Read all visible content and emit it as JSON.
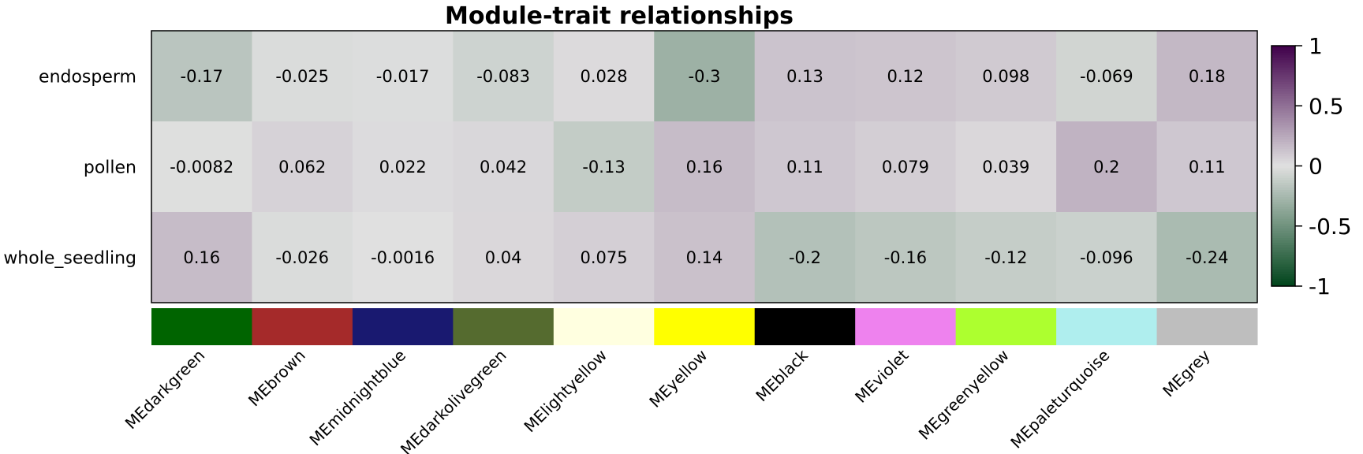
{
  "chart_data": {
    "type": "heatmap",
    "title": "Module-trait relationships",
    "rows": [
      "endosperm",
      "pollen",
      "whole_seedling"
    ],
    "columns": [
      "MEdarkgreen",
      "MEbrown",
      "MEmidnightblue",
      "MEdarkolivegreen",
      "MElightyellow",
      "MEyellow",
      "MEblack",
      "MEviolet",
      "MEgreenyellow",
      "MEpaleturquoise",
      "MEgrey"
    ],
    "column_colors": [
      "#006400",
      "#A52A2A",
      "#191970",
      "#556B2F",
      "#FFFFE0",
      "#FFFF00",
      "#000000",
      "#EE82EE",
      "#ADFF2F",
      "#AFEEEE",
      "#BEBEBE"
    ],
    "values": [
      [
        -0.17,
        -0.025,
        -0.017,
        -0.083,
        0.028,
        -0.3,
        0.13,
        0.12,
        0.098,
        -0.069,
        0.18
      ],
      [
        -0.0082,
        0.062,
        0.022,
        0.042,
        -0.13,
        0.16,
        0.11,
        0.079,
        0.039,
        0.2,
        0.11
      ],
      [
        0.16,
        -0.026,
        -0.0016,
        0.04,
        0.075,
        0.14,
        -0.2,
        -0.16,
        -0.12,
        -0.096,
        -0.24
      ]
    ],
    "labels": [
      [
        "-0.17",
        "-0.025",
        "-0.017",
        "-0.083",
        "0.028",
        "-0.3",
        "0.13",
        "0.12",
        "0.098",
        "-0.069",
        "0.18"
      ],
      [
        "-0.0082",
        "0.062",
        "0.022",
        "0.042",
        "-0.13",
        "0.16",
        "0.11",
        "0.079",
        "0.039",
        "0.2",
        "0.11"
      ],
      [
        "0.16",
        "-0.026",
        "-0.0016",
        "0.04",
        "0.075",
        "0.14",
        "-0.2",
        "-0.16",
        "-0.12",
        "-0.096",
        "-0.24"
      ]
    ],
    "color_scale": {
      "range": [
        -1,
        1
      ],
      "low": "#00441B",
      "mid": "#E0E0E0",
      "high": "#40004B"
    },
    "legend": {
      "ticks": [
        1,
        0.5,
        0,
        -0.5,
        -1
      ],
      "tick_labels": [
        "1",
        "0.5",
        "0",
        "-0.5",
        "-1"
      ],
      "placement": "right"
    }
  }
}
